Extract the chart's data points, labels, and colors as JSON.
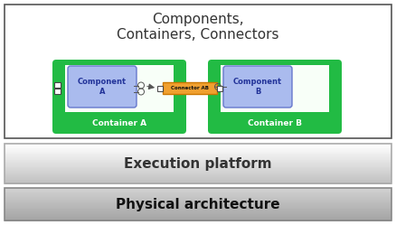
{
  "title_text": "Components,\nContainers, Connectors",
  "title_fontsize": 11,
  "title_color": "#333333",
  "green_color": "#22bb44",
  "green_light": "#44dd66",
  "component_fill": "#aabbee",
  "component_edge": "#6677cc",
  "connector_fill": "#f0a030",
  "connector_edge": "#cc7700",
  "container_a_label": "Container A",
  "container_b_label": "Container B",
  "component_a_label": "Component\nA",
  "component_b_label": "Component\nB",
  "connector_label": "Connector AB",
  "exec_label": "Execution platform",
  "phys_label": "Physical architecture",
  "bg_white": "#ffffff",
  "outer_edge": "#555555",
  "phys_fill_top": "#cccccc",
  "phys_fill_bot": "#888888"
}
